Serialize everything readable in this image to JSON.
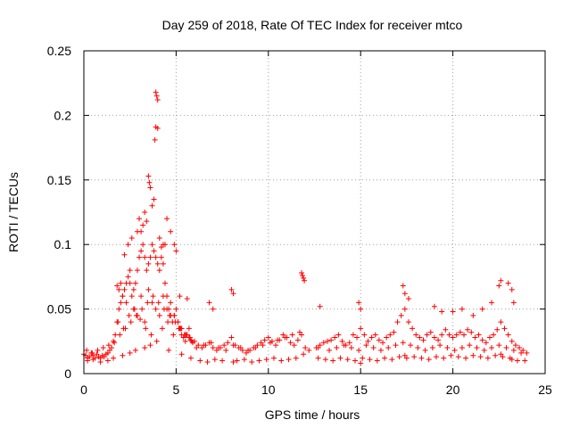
{
  "chart_data": {
    "type": "scatter",
    "title": "Day 259 of 2018, Rate Of TEC Index for receiver mtco",
    "xlabel": "GPS time / hours",
    "ylabel": "ROTI / TECUs",
    "xlim": [
      0,
      25
    ],
    "ylim": [
      0,
      0.25
    ],
    "x_ticks": [
      0,
      5,
      10,
      15,
      20,
      25
    ],
    "x_tick_labels": [
      "0",
      "5",
      "10",
      "15",
      "20",
      "25"
    ],
    "y_ticks": [
      0,
      0.05,
      0.1,
      0.15,
      0.2,
      0.25
    ],
    "y_tick_labels": [
      "0",
      "0.05",
      "0.1",
      "0.15",
      "0.2",
      "0.25"
    ],
    "grid": true,
    "marker": "+",
    "color": "#ff0000",
    "series": [
      {
        "name": "ROTI",
        "x": [
          0.0,
          0.1,
          0.2,
          0.3,
          0.4,
          0.5,
          0.6,
          0.7,
          0.8,
          0.9,
          1.0,
          1.1,
          1.2,
          1.3,
          1.4,
          1.5,
          1.6,
          1.7,
          1.8,
          1.9,
          2.0,
          2.1,
          2.2,
          2.3,
          2.4,
          2.5,
          2.6,
          2.7,
          2.8,
          2.9,
          3.0,
          3.1,
          3.2,
          3.3,
          3.4,
          3.5,
          3.6,
          3.7,
          3.8,
          3.9,
          4.0,
          4.1,
          4.2,
          4.3,
          4.4,
          4.5,
          4.6,
          4.7,
          4.8,
          4.9,
          5.0,
          5.1,
          5.2,
          5.3,
          5.4,
          5.5,
          5.6,
          5.7,
          5.8,
          5.9,
          6.0,
          6.2,
          6.4,
          6.6,
          6.8,
          7.0,
          7.2,
          7.4,
          7.6,
          7.8,
          8.0,
          8.2,
          8.4,
          8.6,
          8.8,
          9.0,
          9.2,
          9.4,
          9.6,
          9.8,
          10.0,
          10.2,
          10.4,
          10.6,
          10.8,
          11.0,
          11.2,
          11.4,
          11.6,
          11.8,
          12.0,
          12.2,
          12.6,
          12.8,
          13.0,
          13.2,
          13.4,
          13.6,
          13.8,
          14.0,
          14.2,
          14.4,
          14.6,
          14.8,
          15.0,
          15.2,
          15.4,
          15.6,
          15.8,
          16.0,
          16.2,
          16.4,
          16.6,
          16.8,
          17.0,
          17.2,
          17.4,
          17.6,
          17.8,
          18.0,
          18.2,
          18.4,
          18.6,
          18.8,
          19.0,
          19.2,
          19.4,
          19.6,
          19.8,
          20.0,
          20.2,
          20.4,
          20.6,
          20.8,
          21.0,
          21.2,
          21.4,
          21.6,
          21.8,
          22.0,
          22.2,
          22.4,
          22.6,
          22.8,
          23.0,
          23.2,
          23.4,
          23.6,
          23.8,
          24.0,
          3.9,
          3.95,
          4.0,
          3.9,
          4.0,
          3.85,
          3.5,
          3.55,
          3.6,
          3.3,
          3.0,
          2.9,
          3.2,
          4.1,
          4.3,
          2.2,
          2.4,
          2.6,
          2.0,
          1.8,
          4.5,
          4.7,
          4.9,
          5.0,
          4.2,
          4.4,
          3.7,
          3.8,
          3.1,
          3.4,
          0.2,
          0.5,
          0.9,
          1.3,
          1.6,
          2.1,
          2.5,
          2.8,
          3.3,
          3.6,
          4.6,
          5.3,
          5.8,
          6.3,
          6.7,
          7.1,
          7.5,
          8.1,
          8.3,
          8.7,
          9.1,
          9.5,
          9.9,
          10.3,
          10.7,
          11.1,
          11.5,
          11.9,
          11.85,
          11.95,
          12.7,
          13.1,
          13.5,
          13.9,
          14.3,
          14.7,
          15.0,
          15.1,
          15.5,
          15.9,
          16.3,
          16.7,
          17.1,
          17.4,
          17.5,
          17.9,
          18.3,
          18.7,
          19.1,
          19.5,
          19.9,
          20.3,
          20.7,
          21.1,
          21.5,
          21.9,
          22.3,
          22.6,
          22.7,
          23.1,
          23.2,
          23.5,
          23.9,
          0.15,
          0.45,
          0.75,
          1.05,
          1.35,
          1.65,
          1.95,
          2.25,
          2.55,
          2.85,
          3.15,
          3.45,
          3.75,
          4.05,
          4.35,
          4.65,
          4.95,
          5.25,
          5.55,
          5.85,
          6.1,
          6.5,
          6.9,
          7.3,
          7.7,
          8.1,
          8.5,
          8.9,
          9.3,
          9.7,
          10.1,
          10.5,
          10.9,
          11.3,
          11.7,
          12.7,
          13.3,
          13.7,
          14.1,
          14.5,
          14.9,
          15.3,
          15.7,
          16.1,
          16.5,
          16.9,
          17.3,
          17.7,
          18.1,
          18.5,
          18.9,
          19.3,
          19.7,
          20.1,
          20.5,
          20.9,
          21.3,
          21.7,
          22.1,
          22.5,
          22.9,
          23.3,
          23.7,
          1.9,
          2.1,
          2.3,
          2.5,
          2.7,
          2.9,
          3.1,
          3.3,
          3.5,
          3.7,
          3.9,
          4.1,
          4.3,
          4.5,
          4.7,
          4.9,
          5.1,
          5.3,
          5.5,
          5.7,
          1.85,
          2.15,
          2.45,
          2.75,
          3.05,
          3.35,
          3.65,
          3.95,
          4.25,
          4.55,
          4.85,
          5.15,
          5.45,
          5.75,
          5.2,
          5.6,
          6.8,
          7.0,
          8.0,
          8.1,
          11.8,
          11.9,
          12.8,
          14.9,
          15.0,
          17.3,
          17.4,
          17.6,
          19.0,
          19.4,
          20.0,
          20.5,
          21.1,
          21.6,
          22.1,
          22.5,
          22.6,
          23.0,
          23.2,
          23.3
        ],
        "y": [
          0.015,
          0.014,
          0.012,
          0.013,
          0.016,
          0.014,
          0.012,
          0.015,
          0.013,
          0.012,
          0.014,
          0.013,
          0.015,
          0.016,
          0.018,
          0.02,
          0.025,
          0.03,
          0.04,
          0.05,
          0.055,
          0.06,
          0.065,
          0.07,
          0.075,
          0.08,
          0.06,
          0.065,
          0.07,
          0.08,
          0.09,
          0.095,
          0.1,
          0.09,
          0.08,
          0.085,
          0.09,
          0.1,
          0.095,
          0.09,
          0.085,
          0.08,
          0.09,
          0.085,
          0.07,
          0.06,
          0.05,
          0.045,
          0.04,
          0.045,
          0.05,
          0.04,
          0.035,
          0.03,
          0.028,
          0.025,
          0.03,
          0.028,
          0.026,
          0.024,
          0.025,
          0.022,
          0.02,
          0.022,
          0.024,
          0.02,
          0.018,
          0.02,
          0.022,
          0.024,
          0.028,
          0.022,
          0.02,
          0.018,
          0.016,
          0.018,
          0.02,
          0.022,
          0.024,
          0.026,
          0.028,
          0.025,
          0.022,
          0.026,
          0.03,
          0.028,
          0.024,
          0.022,
          0.026,
          0.03,
          0.02,
          0.018,
          0.02,
          0.022,
          0.024,
          0.025,
          0.026,
          0.028,
          0.03,
          0.025,
          0.022,
          0.024,
          0.03,
          0.028,
          0.035,
          0.03,
          0.025,
          0.028,
          0.03,
          0.026,
          0.024,
          0.028,
          0.03,
          0.032,
          0.04,
          0.045,
          0.05,
          0.04,
          0.035,
          0.03,
          0.028,
          0.026,
          0.03,
          0.032,
          0.028,
          0.026,
          0.03,
          0.034,
          0.03,
          0.028,
          0.03,
          0.032,
          0.03,
          0.034,
          0.032,
          0.028,
          0.03,
          0.026,
          0.024,
          0.028,
          0.03,
          0.034,
          0.04,
          0.035,
          0.03,
          0.025,
          0.022,
          0.02,
          0.018,
          0.016,
          0.218,
          0.215,
          0.212,
          0.191,
          0.19,
          0.181,
          0.153,
          0.148,
          0.144,
          0.125,
          0.12,
          0.11,
          0.115,
          0.105,
          0.1,
          0.092,
          0.1,
          0.105,
          0.07,
          0.068,
          0.12,
          0.11,
          0.1,
          0.095,
          0.098,
          0.1,
          0.13,
          0.135,
          0.11,
          0.118,
          0.01,
          0.011,
          0.009,
          0.01,
          0.012,
          0.014,
          0.016,
          0.018,
          0.02,
          0.022,
          0.018,
          0.015,
          0.012,
          0.01,
          0.009,
          0.011,
          0.01,
          0.009,
          0.01,
          0.011,
          0.009,
          0.01,
          0.011,
          0.012,
          0.01,
          0.011,
          0.012,
          0.015,
          0.076,
          0.072,
          0.012,
          0.011,
          0.01,
          0.012,
          0.011,
          0.01,
          0.008,
          0.012,
          0.011,
          0.01,
          0.012,
          0.011,
          0.013,
          0.014,
          0.012,
          0.013,
          0.012,
          0.011,
          0.013,
          0.012,
          0.014,
          0.013,
          0.012,
          0.014,
          0.013,
          0.012,
          0.014,
          0.015,
          0.013,
          0.012,
          0.011,
          0.01,
          0.01,
          0.018,
          0.016,
          0.018,
          0.02,
          0.022,
          0.024,
          0.03,
          0.035,
          0.04,
          0.045,
          0.05,
          0.055,
          0.06,
          0.055,
          0.05,
          0.045,
          0.04,
          0.035,
          0.03,
          0.025,
          0.02,
          0.022,
          0.024,
          0.02,
          0.018,
          0.022,
          0.02,
          0.018,
          0.02,
          0.022,
          0.024,
          0.026,
          0.028,
          0.03,
          0.032,
          0.02,
          0.018,
          0.02,
          0.022,
          0.02,
          0.018,
          0.022,
          0.02,
          0.018,
          0.02,
          0.022,
          0.024,
          0.022,
          0.02,
          0.018,
          0.02,
          0.022,
          0.02,
          0.018,
          0.02,
          0.022,
          0.02,
          0.018,
          0.02,
          0.022,
          0.02,
          0.018,
          0.016,
          0.065,
          0.06,
          0.055,
          0.07,
          0.05,
          0.045,
          0.06,
          0.04,
          0.065,
          0.055,
          0.05,
          0.045,
          0.06,
          0.05,
          0.055,
          0.045,
          0.04,
          0.035,
          0.03,
          0.035,
          0.04,
          0.035,
          0.045,
          0.05,
          0.042,
          0.035,
          0.03,
          0.025,
          0.035,
          0.04,
          0.03,
          0.035,
          0.03,
          0.028,
          0.06,
          0.058,
          0.055,
          0.05,
          0.065,
          0.062,
          0.078,
          0.074,
          0.052,
          0.055,
          0.05,
          0.068,
          0.062,
          0.058,
          0.052,
          0.048,
          0.048,
          0.05,
          0.045,
          0.05,
          0.055,
          0.068,
          0.072,
          0.07,
          0.065,
          0.055
        ]
      }
    ]
  }
}
